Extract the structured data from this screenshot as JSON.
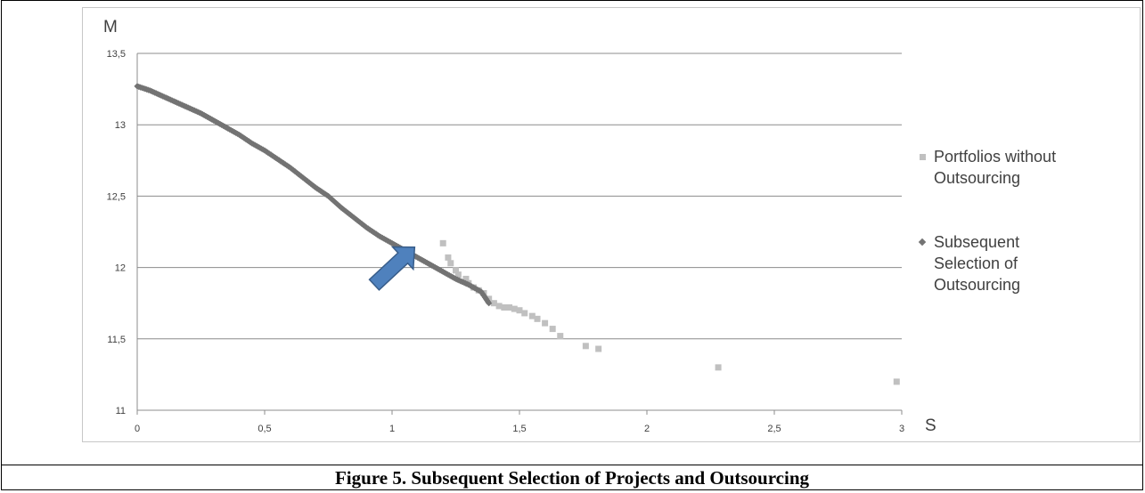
{
  "figure": {
    "caption": "Figure 5. Subsequent Selection of Projects and Outsourcing"
  },
  "legend": {
    "items": [
      {
        "label": "Portfolios without Outsourcing",
        "marker": "square",
        "color": "#c0c0c0"
      },
      {
        "label": "Subsequent Selection of Outsourcing",
        "marker": "diamond",
        "color": "#737373"
      }
    ]
  },
  "chart_data": {
    "type": "scatter",
    "title": "",
    "xlabel": "S",
    "ylabel": "M",
    "xlim": [
      0,
      3
    ],
    "ylim": [
      11,
      13.5
    ],
    "x_ticks": [
      "0",
      "0,5",
      "1",
      "1,5",
      "2",
      "2,5",
      "3"
    ],
    "y_ticks": [
      "11",
      "11,5",
      "12",
      "12,5",
      "13",
      "13,5"
    ],
    "grid": "horizontal",
    "legend_position": "right",
    "series": [
      {
        "name": "Portfolios without Outsourcing",
        "marker": "square",
        "color": "#c0c0c0",
        "points": [
          [
            1.2,
            12.17
          ],
          [
            1.22,
            12.07
          ],
          [
            1.23,
            12.03
          ],
          [
            1.25,
            11.98
          ],
          [
            1.26,
            11.95
          ],
          [
            1.29,
            11.92
          ],
          [
            1.3,
            11.89
          ],
          [
            1.32,
            11.86
          ],
          [
            1.34,
            11.84
          ],
          [
            1.36,
            11.82
          ],
          [
            1.38,
            11.78
          ],
          [
            1.4,
            11.75
          ],
          [
            1.42,
            11.73
          ],
          [
            1.44,
            11.72
          ],
          [
            1.46,
            11.72
          ],
          [
            1.48,
            11.71
          ],
          [
            1.5,
            11.7
          ],
          [
            1.52,
            11.68
          ],
          [
            1.55,
            11.66
          ],
          [
            1.57,
            11.64
          ],
          [
            1.6,
            11.61
          ],
          [
            1.63,
            11.57
          ],
          [
            1.66,
            11.52
          ],
          [
            1.76,
            11.45
          ],
          [
            1.81,
            11.43
          ],
          [
            2.28,
            11.3
          ],
          [
            2.98,
            11.2
          ]
        ]
      },
      {
        "name": "Subsequent Selection of Outsourcing",
        "marker": "diamond",
        "color": "#737373",
        "points": [
          [
            0.0,
            13.27
          ],
          [
            0.05,
            13.24
          ],
          [
            0.1,
            13.2
          ],
          [
            0.15,
            13.16
          ],
          [
            0.2,
            13.12
          ],
          [
            0.25,
            13.08
          ],
          [
            0.3,
            13.03
          ],
          [
            0.35,
            12.98
          ],
          [
            0.4,
            12.93
          ],
          [
            0.45,
            12.87
          ],
          [
            0.5,
            12.82
          ],
          [
            0.55,
            12.76
          ],
          [
            0.6,
            12.7
          ],
          [
            0.65,
            12.63
          ],
          [
            0.7,
            12.56
          ],
          [
            0.75,
            12.5
          ],
          [
            0.8,
            12.42
          ],
          [
            0.85,
            12.35
          ],
          [
            0.9,
            12.28
          ],
          [
            0.95,
            12.22
          ],
          [
            1.0,
            12.17
          ],
          [
            1.05,
            12.12
          ],
          [
            1.1,
            12.07
          ],
          [
            1.15,
            12.02
          ],
          [
            1.2,
            11.97
          ],
          [
            1.25,
            11.92
          ],
          [
            1.3,
            11.88
          ],
          [
            1.35,
            11.83
          ],
          [
            1.38,
            11.75
          ]
        ]
      }
    ]
  }
}
